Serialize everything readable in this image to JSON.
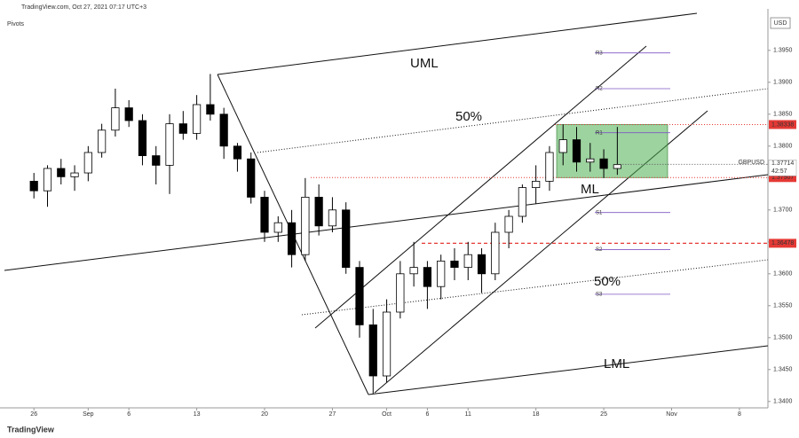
{
  "chart_data": {
    "type": "candlestick",
    "header": "TradingView.com, Oct 27, 2021 07:17 UTC+3",
    "indicator": "Pivots",
    "currency": "USD",
    "symbol": "GBPUSD",
    "last_price": {
      "value": 1.37714,
      "label": "1.37714"
    },
    "countdown": "42:57",
    "footer": "TradingView",
    "x": [
      0,
      1,
      2,
      3,
      4,
      5,
      6,
      7,
      8,
      9,
      10,
      11,
      12,
      13,
      14,
      15,
      16,
      17,
      18,
      19,
      20,
      21,
      22,
      23,
      24,
      25,
      26,
      27,
      28,
      29,
      30,
      31,
      32,
      33,
      34,
      35,
      36,
      37,
      38,
      39,
      40,
      41,
      42,
      43
    ],
    "open": [
      1.3745,
      1.373,
      1.3765,
      1.3752,
      1.3758,
      1.379,
      1.3825,
      1.386,
      1.384,
      1.3785,
      1.377,
      1.3835,
      1.382,
      1.3865,
      1.385,
      1.38,
      1.378,
      1.372,
      1.3665,
      1.368,
      1.363,
      1.372,
      1.3675,
      1.37,
      1.361,
      1.352,
      1.344,
      1.354,
      1.36,
      1.361,
      1.358,
      1.362,
      1.361,
      1.363,
      1.36,
      1.3665,
      1.369,
      1.3735,
      1.3745,
      1.379,
      1.381,
      1.3775,
      1.378,
      1.3765
    ],
    "high": [
      1.3758,
      1.377,
      1.378,
      1.377,
      1.38,
      1.3835,
      1.389,
      1.3872,
      1.385,
      1.38,
      1.385,
      1.3855,
      1.388,
      1.3913,
      1.386,
      1.3805,
      1.379,
      1.373,
      1.369,
      1.37,
      1.375,
      1.374,
      1.372,
      1.3712,
      1.362,
      1.3545,
      1.356,
      1.362,
      1.365,
      1.362,
      1.363,
      1.364,
      1.365,
      1.364,
      1.368,
      1.37,
      1.374,
      1.377,
      1.38,
      1.3834,
      1.383,
      1.3805,
      1.3795,
      1.383
    ],
    "low": [
      1.3718,
      1.3705,
      1.374,
      1.373,
      1.3745,
      1.3782,
      1.3815,
      1.383,
      1.377,
      1.374,
      1.3725,
      1.381,
      1.381,
      1.384,
      1.378,
      1.376,
      1.371,
      1.365,
      1.365,
      1.361,
      1.362,
      1.366,
      1.3665,
      1.36,
      1.35,
      1.3412,
      1.343,
      1.353,
      1.358,
      1.3545,
      1.356,
      1.359,
      1.359,
      1.357,
      1.359,
      1.364,
      1.368,
      1.371,
      1.373,
      1.377,
      1.376,
      1.376,
      1.375,
      1.3755
    ],
    "close": [
      1.373,
      1.3765,
      1.3752,
      1.3758,
      1.379,
      1.3825,
      1.386,
      1.384,
      1.3785,
      1.377,
      1.3835,
      1.382,
      1.3865,
      1.385,
      1.38,
      1.378,
      1.372,
      1.3665,
      1.368,
      1.363,
      1.372,
      1.3675,
      1.37,
      1.361,
      1.352,
      1.344,
      1.354,
      1.36,
      1.361,
      1.358,
      1.362,
      1.361,
      1.363,
      1.36,
      1.3665,
      1.369,
      1.3735,
      1.3745,
      1.379,
      1.381,
      1.3775,
      1.378,
      1.3765,
      1.3771
    ],
    "xlim": [
      -2.5,
      54.1
    ],
    "xticks": [
      {
        "value": 0,
        "label": "26"
      },
      {
        "value": 4,
        "label": "Sep"
      },
      {
        "value": 7,
        "label": "6"
      },
      {
        "value": 12,
        "label": "13"
      },
      {
        "value": 17,
        "label": "20"
      },
      {
        "value": 22,
        "label": "27"
      },
      {
        "value": 26,
        "label": "Oct"
      },
      {
        "value": 29,
        "label": "6"
      },
      {
        "value": 32,
        "label": "11"
      },
      {
        "value": 37,
        "label": "18"
      },
      {
        "value": 42,
        "label": "25"
      },
      {
        "value": 47,
        "label": "Nov"
      },
      {
        "value": 52,
        "label": "8"
      }
    ],
    "ylim": [
      1.339,
      1.4015
    ],
    "yticks": [
      {
        "value": 1.34,
        "label": "1.3400"
      },
      {
        "value": 1.345,
        "label": "1.3450"
      },
      {
        "value": 1.35,
        "label": "1.3500"
      },
      {
        "value": 1.355,
        "label": "1.3550"
      },
      {
        "value": 1.36,
        "label": "1.3600"
      },
      {
        "value": 1.365,
        "label": "1.3650"
      },
      {
        "value": 1.37,
        "label": "1.3700"
      },
      {
        "value": 1.375,
        "label": "1.3750"
      },
      {
        "value": 1.38,
        "label": "1.3800"
      },
      {
        "value": 1.385,
        "label": "1.3850"
      },
      {
        "value": 1.39,
        "label": "1.3900"
      },
      {
        "value": 1.395,
        "label": "1.3950"
      }
    ],
    "up_color": "#ffffff",
    "down_color": "#000000",
    "levels": [
      {
        "value": 1.38338,
        "label": "1.38338",
        "color": "#e53935"
      },
      {
        "value": 1.37507,
        "label": "1.37507",
        "color": "#e53935"
      },
      {
        "value": 1.36478,
        "label": "1.36478",
        "color": "#e53935"
      }
    ],
    "zone": {
      "low": 1.37507,
      "high": 1.38338,
      "color": "#4caf50"
    },
    "pivots": [
      {
        "name": "R3",
        "value": 1.3946
      },
      {
        "name": "R2",
        "value": 1.389
      },
      {
        "name": "R1",
        "value": 1.3821
      },
      {
        "name": "S1",
        "value": 1.3696
      },
      {
        "name": "S2",
        "value": 1.3638
      },
      {
        "name": "S3",
        "value": 1.3568
      }
    ],
    "pivot_color": "#7e57c2",
    "annotations": [
      "UML",
      "50%",
      "ML",
      "50%",
      "LML"
    ]
  }
}
